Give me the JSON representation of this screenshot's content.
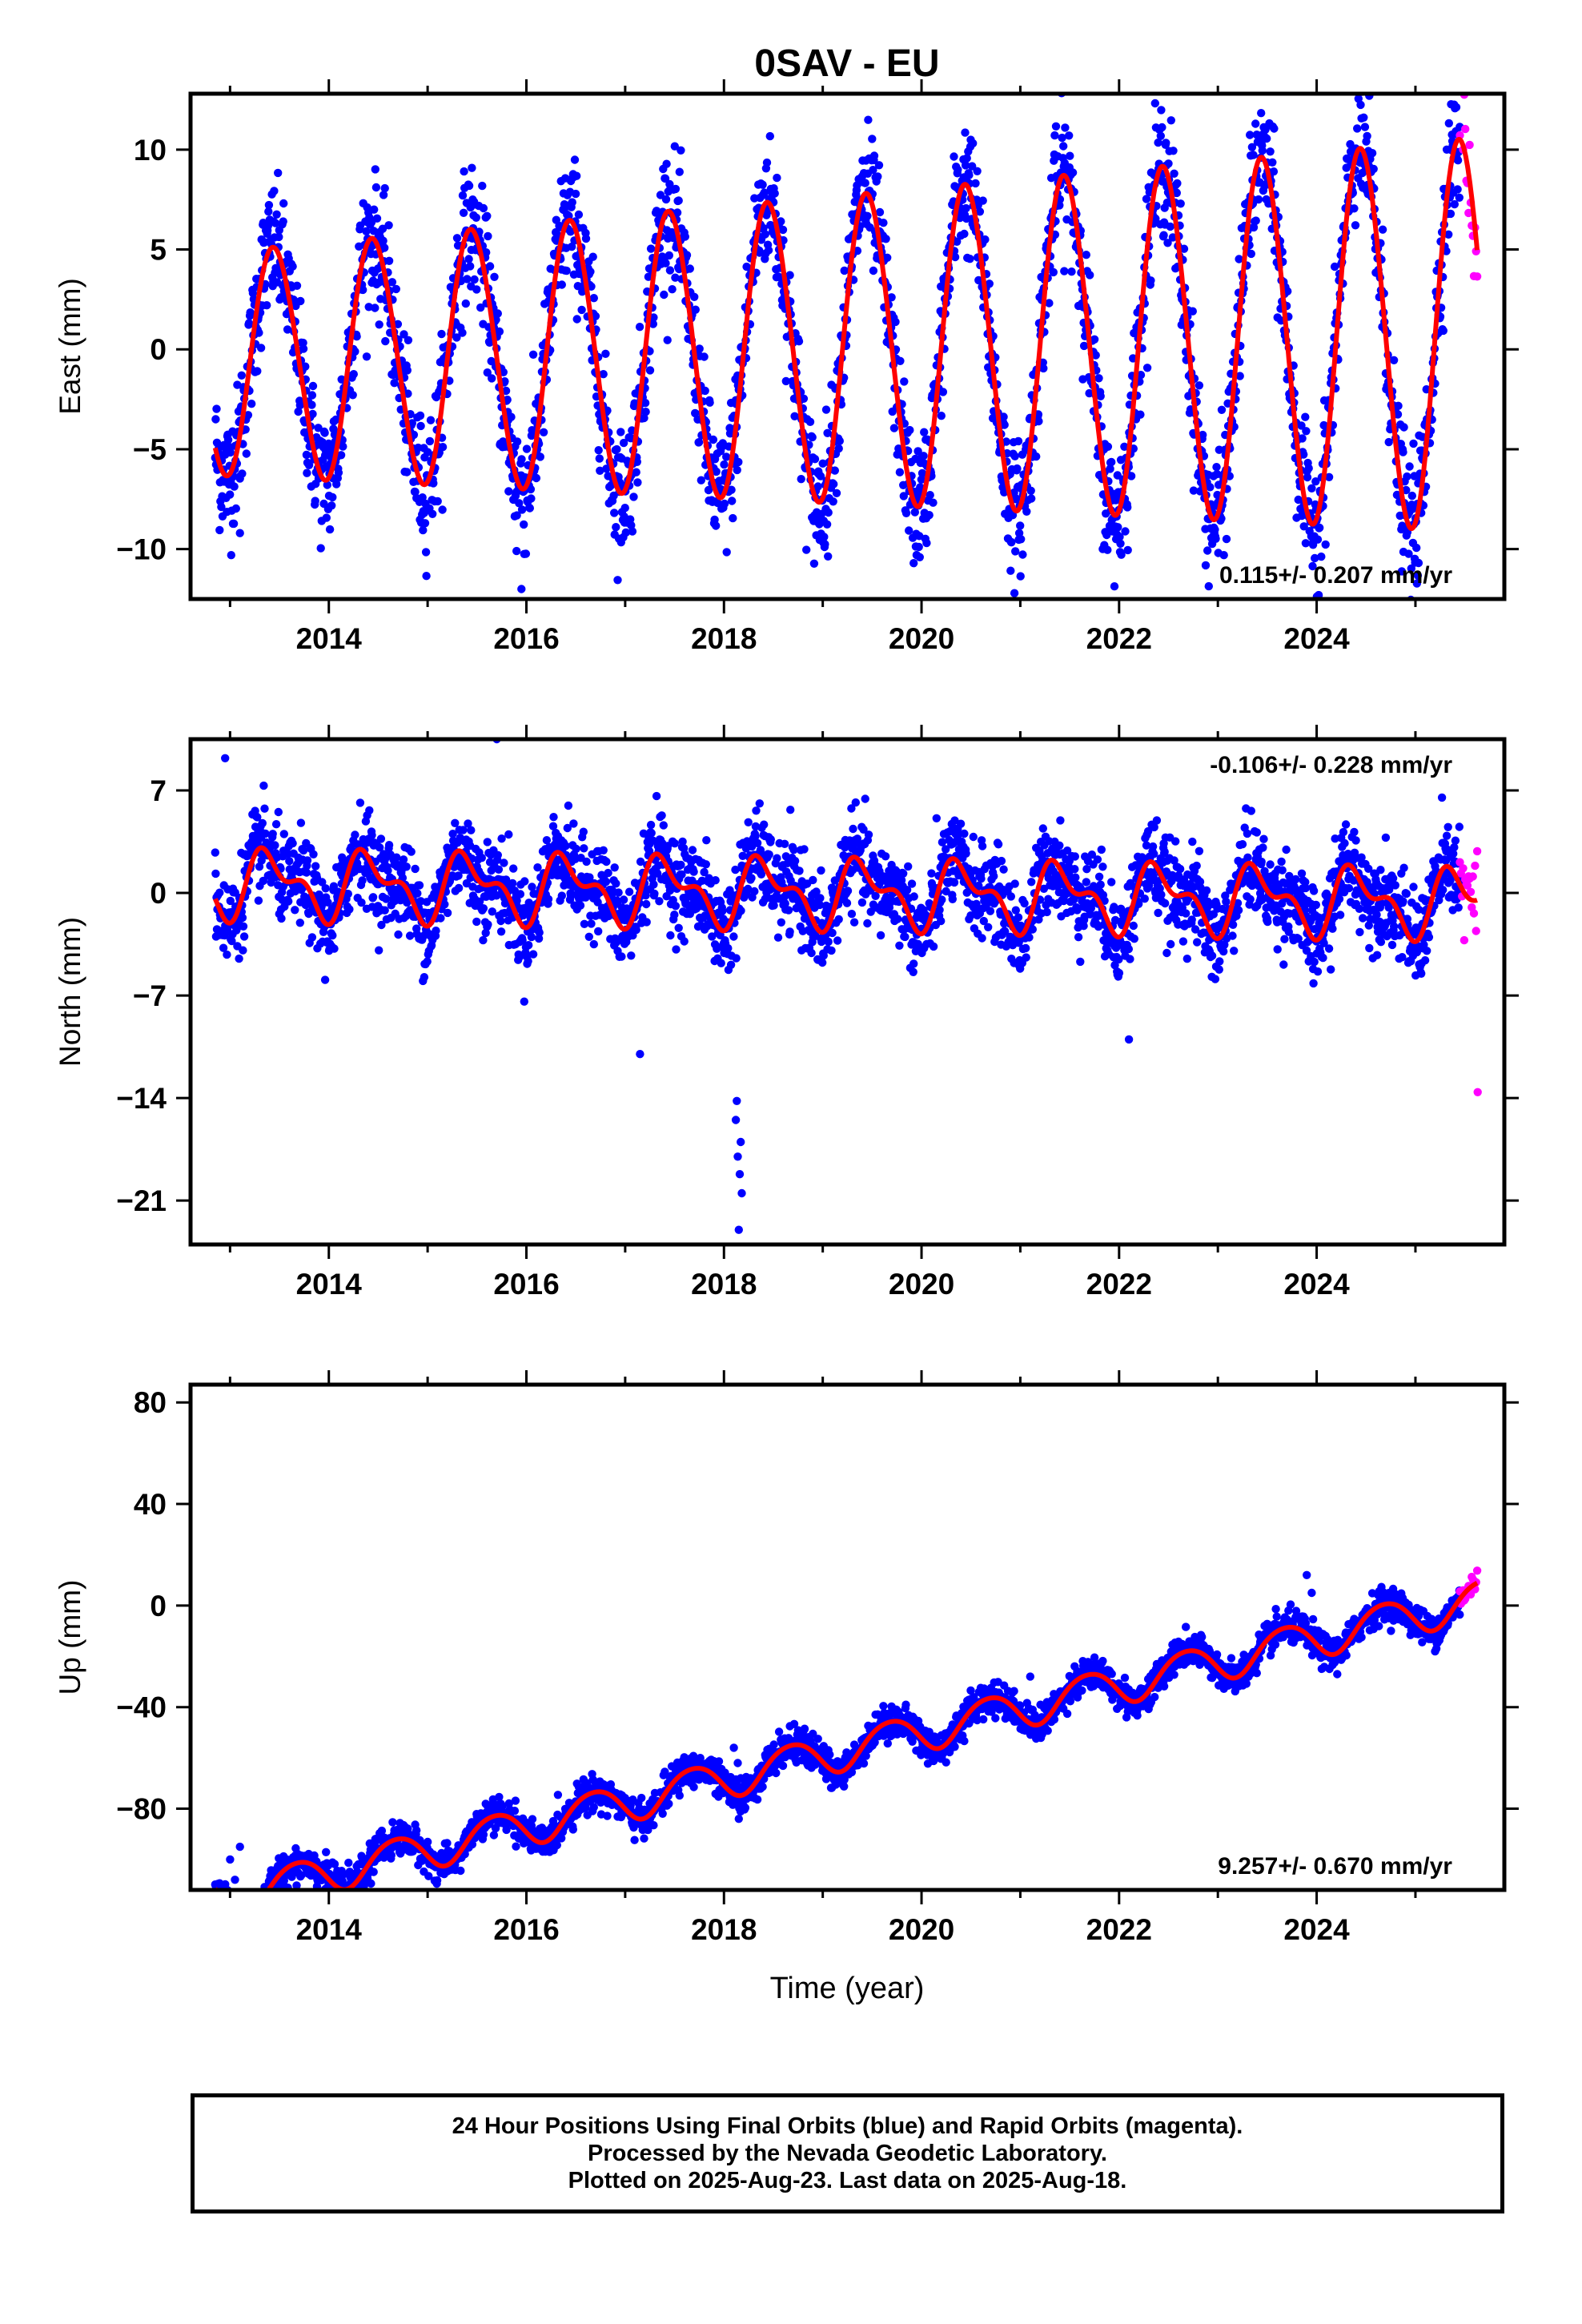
{
  "colors": {
    "final_points": "#0000ff",
    "rapid_points": "#ff00ff",
    "model_line": "#ff0000",
    "axes": "#000000",
    "background": "#ffffff"
  },
  "title": "0SAV - EU",
  "xlabel": "Time (year)",
  "caption": {
    "line1": "24 Hour Positions Using Final Orbits (blue) and Rapid Orbits (magenta).",
    "line2": "Processed by the Nevada Geodetic Laboratory.",
    "line3": "Plotted on 2025-Aug-23. Last data on 2025-Aug-18."
  },
  "chart_data": [
    {
      "type": "scatter",
      "panel": "east",
      "ylabel": "East (mm)",
      "xlim": [
        2012.6,
        2025.9
      ],
      "ylim": [
        -12.5,
        12.8
      ],
      "x_ticks": [
        2014,
        2016,
        2018,
        2020,
        2022,
        2024
      ],
      "x_tick_labels": [
        "2014",
        "2016",
        "2018",
        "2020",
        "2022",
        "2024"
      ],
      "y_ticks": [
        10,
        5,
        0,
        -5,
        -10
      ],
      "y_tick_labels": [
        "10",
        "5",
        "0",
        "−5",
        "−10"
      ],
      "rate_label": "0.115+/- 0.207 mm/yr",
      "rate_label_position": "bottom-right",
      "model": {
        "offset": 0.0,
        "trend": 0.115,
        "annual_amp": 5.6,
        "annual_phase_year": 0.45,
        "semiannual_amp": 0.3,
        "semiannual_phase_year": 0.2,
        "amp_growth_per_year": 0.06
      },
      "noise_std": 1.6,
      "outliers": [
        {
          "x": 2015.95,
          "y": -12.0
        },
        {
          "x": 2015.9,
          "y": -10.1
        },
        {
          "x": 2013.1,
          "y": -9.2
        },
        {
          "x": 2019.95,
          "y": -10.3
        },
        {
          "x": 2021.85,
          "y": -9.8
        }
      ],
      "series": [
        {
          "name": "Final Orbits",
          "color": "#0000ff",
          "x_start": 2012.85,
          "x_end": 2025.45
        },
        {
          "name": "Rapid Orbits",
          "color": "#ff00ff",
          "x_start": 2025.45,
          "x_end": 2025.63
        }
      ],
      "fit_line": {
        "color": "#ff0000",
        "x_start": 2012.85,
        "x_end": 2025.63
      }
    },
    {
      "type": "scatter",
      "panel": "north",
      "ylabel": "North (mm)",
      "xlim": [
        2012.6,
        2025.9
      ],
      "ylim": [
        -24,
        10.5
      ],
      "x_ticks": [
        2014,
        2016,
        2018,
        2020,
        2022,
        2024
      ],
      "x_tick_labels": [
        "2014",
        "2016",
        "2018",
        "2020",
        "2022",
        "2024"
      ],
      "y_ticks": [
        7,
        0,
        -7,
        -14,
        -21
      ],
      "y_tick_labels": [
        "7",
        "0",
        "−7",
        "−14",
        "−21"
      ],
      "rate_label": "-0.106+/- 0.228 mm/yr",
      "rate_label_position": "top-right",
      "model": {
        "offset": 0.0,
        "trend": -0.106,
        "annual_amp": 1.9,
        "annual_phase_year": 0.42,
        "semiannual_amp": 1.1,
        "semiannual_phase_year": 0.15,
        "amp_growth_per_year": 0.0
      },
      "noise_std": 1.5,
      "outliers": [
        {
          "x": 2015.7,
          "y": 10.5
        },
        {
          "x": 2012.95,
          "y": 9.2
        },
        {
          "x": 2018.15,
          "y": -23.0
        },
        {
          "x": 2018.18,
          "y": -20.5
        },
        {
          "x": 2018.14,
          "y": -18.0
        },
        {
          "x": 2018.12,
          "y": -15.5
        },
        {
          "x": 2018.17,
          "y": -17.0
        },
        {
          "x": 2018.16,
          "y": -19.2
        },
        {
          "x": 2018.13,
          "y": -14.2
        },
        {
          "x": 2017.15,
          "y": -11.0
        },
        {
          "x": 2022.1,
          "y": -10.0
        },
        {
          "x": 2025.63,
          "y": -13.6
        }
      ],
      "series": [
        {
          "name": "Final Orbits",
          "color": "#0000ff",
          "x_start": 2012.85,
          "x_end": 2025.45
        },
        {
          "name": "Rapid Orbits",
          "color": "#ff00ff",
          "x_start": 2025.45,
          "x_end": 2025.63
        }
      ],
      "fit_line": {
        "color": "#ff0000",
        "x_start": 2012.85,
        "x_end": 2025.63
      }
    },
    {
      "type": "scatter",
      "panel": "up",
      "ylabel": "Up (mm)",
      "xlim": [
        2012.6,
        2025.9
      ],
      "ylim": [
        -112,
        87
      ],
      "x_ticks": [
        2014,
        2016,
        2018,
        2020,
        2022,
        2024
      ],
      "x_tick_labels": [
        "2014",
        "2016",
        "2018",
        "2020",
        "2022",
        "2024"
      ],
      "y_ticks": [
        80,
        40,
        0,
        -40,
        -80
      ],
      "y_tick_labels": [
        "80",
        "40",
        "0",
        "−40",
        "−80"
      ],
      "rate_label": "9.257+/- 0.670 mm/yr",
      "rate_label_position": "bottom-right",
      "model": {
        "offset": -57.0,
        "trend": 9.257,
        "annual_amp": 7.5,
        "annual_phase_year": 0.68,
        "semiannual_amp": 0.8,
        "semiannual_phase_year": 0.3,
        "amp_growth_per_year": 0.0
      },
      "noise_std": 3.2,
      "outliers": [
        {
          "x": 2013.05,
          "y": -108.0
        },
        {
          "x": 2013.0,
          "y": -100.0
        },
        {
          "x": 2013.1,
          "y": -95.0
        },
        {
          "x": 2018.15,
          "y": -84.0
        },
        {
          "x": 2018.18,
          "y": -80.0
        },
        {
          "x": 2018.12,
          "y": -74.0
        },
        {
          "x": 2018.17,
          "y": -68.0
        },
        {
          "x": 2018.14,
          "y": -62.0
        },
        {
          "x": 2018.1,
          "y": -56.0
        },
        {
          "x": 2021.1,
          "y": -28.0
        },
        {
          "x": 2023.95,
          "y": 5.0
        },
        {
          "x": 2023.9,
          "y": 12.0
        }
      ],
      "series": [
        {
          "name": "Final Orbits",
          "color": "#0000ff",
          "x_start": 2012.85,
          "x_end": 2025.45
        },
        {
          "name": "Rapid Orbits",
          "color": "#ff00ff",
          "x_start": 2025.45,
          "x_end": 2025.63
        }
      ],
      "fit_line": {
        "color": "#ff0000",
        "x_start": 2012.85,
        "x_end": 2025.63
      }
    }
  ]
}
